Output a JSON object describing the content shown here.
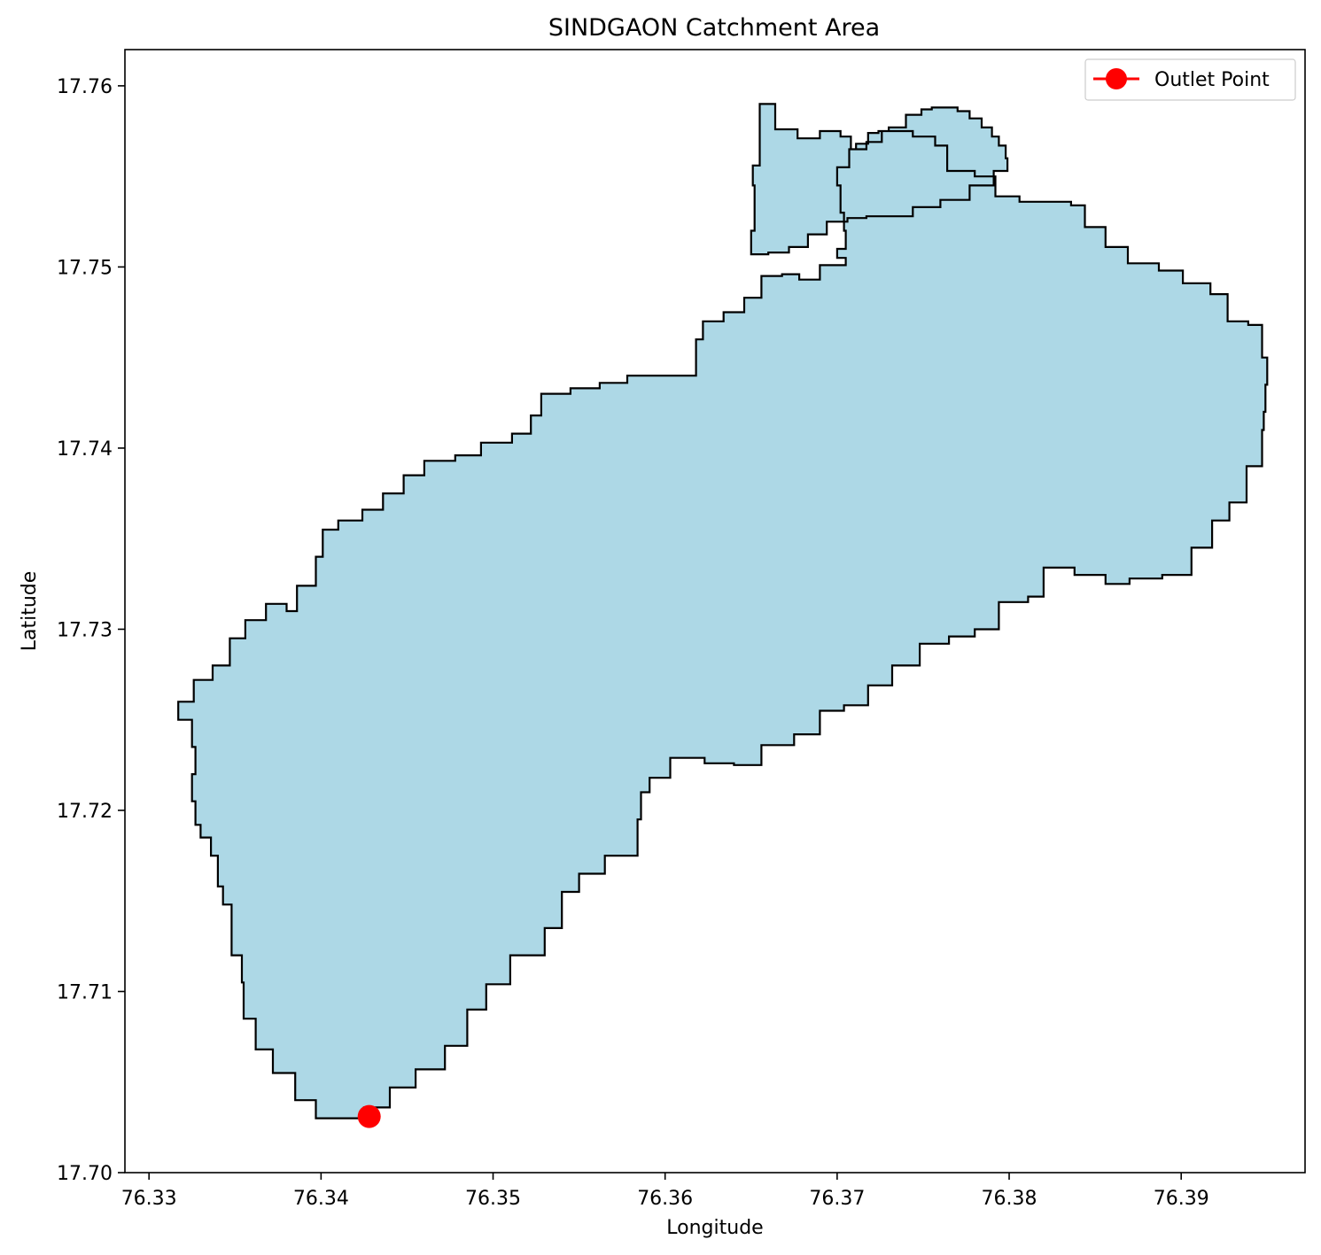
{
  "map": {
    "title": "SINDGAON Catchment Area",
    "xlabel": "Longitude",
    "ylabel": "Latitude",
    "xlim": [
      76.3286,
      76.3972
    ],
    "ylim": [
      17.7,
      17.762
    ],
    "x_ticks": [
      "76.33",
      "76.34",
      "76.35",
      "76.36",
      "76.37",
      "76.38",
      "76.39"
    ],
    "y_ticks": [
      "17.70",
      "17.71",
      "17.72",
      "17.73",
      "17.74",
      "17.75",
      "17.76"
    ],
    "grid": false,
    "legend": {
      "placement": "top-right",
      "entries": [
        {
          "label": "Outlet Point",
          "color": "#ff0000"
        }
      ]
    },
    "colors": {
      "catchment_fill": "#add8e6",
      "catchment_edge": "#000000",
      "outlet": "#ff0000"
    },
    "outlet": {
      "lon": 76.3428,
      "lat": 17.7031
    },
    "boundary": [
      [
        76.3655,
        17.759
      ],
      [
        76.3664,
        17.759
      ],
      [
        76.3664,
        17.7576
      ],
      [
        76.3677,
        17.7571
      ],
      [
        76.369,
        17.7575
      ],
      [
        76.3702,
        17.7572
      ],
      [
        76.3708,
        17.7565
      ],
      [
        76.3717,
        17.7569
      ],
      [
        76.3726,
        17.7575
      ],
      [
        76.3744,
        17.7572
      ],
      [
        76.3757,
        17.7567
      ],
      [
        76.3764,
        17.7553
      ],
      [
        76.378,
        17.755
      ],
      [
        76.3792,
        17.7539
      ],
      [
        76.3806,
        17.7536
      ],
      [
        76.3819,
        17.7536
      ],
      [
        76.3836,
        17.7534
      ],
      [
        76.3844,
        17.7522
      ],
      [
        76.3856,
        17.7511
      ],
      [
        76.3869,
        17.7502
      ],
      [
        76.3887,
        17.7498
      ],
      [
        76.3901,
        17.7491
      ],
      [
        76.3917,
        17.7485
      ],
      [
        76.3927,
        17.747
      ],
      [
        76.3939,
        17.7468
      ],
      [
        76.3947,
        17.745
      ],
      [
        76.395,
        17.7435
      ],
      [
        76.3949,
        17.742
      ],
      [
        76.3948,
        17.741
      ],
      [
        76.3947,
        17.739
      ],
      [
        76.3938,
        17.737
      ],
      [
        76.3928,
        17.736
      ],
      [
        76.3918,
        17.7345
      ],
      [
        76.3906,
        17.733
      ],
      [
        76.3889,
        17.7328
      ],
      [
        76.387,
        17.7325
      ],
      [
        76.3856,
        17.733
      ],
      [
        76.3838,
        17.7334
      ],
      [
        76.382,
        17.7318
      ],
      [
        76.3811,
        17.7315
      ],
      [
        76.3794,
        17.73
      ],
      [
        76.378,
        17.7296
      ],
      [
        76.3765,
        17.7292
      ],
      [
        76.3748,
        17.728
      ],
      [
        76.3732,
        17.7269
      ],
      [
        76.3718,
        17.7258
      ],
      [
        76.3704,
        17.7255
      ],
      [
        76.369,
        17.7242
      ],
      [
        76.3675,
        17.7236
      ],
      [
        76.3656,
        17.7225
      ],
      [
        76.364,
        17.7226
      ],
      [
        76.3623,
        17.7229
      ],
      [
        76.3603,
        17.7218
      ],
      [
        76.3591,
        17.721
      ],
      [
        76.3586,
        17.7195
      ],
      [
        76.3584,
        17.7175
      ],
      [
        76.3565,
        17.7165
      ],
      [
        76.355,
        17.7155
      ],
      [
        76.354,
        17.7135
      ],
      [
        76.353,
        17.712
      ],
      [
        76.351,
        17.7104
      ],
      [
        76.3496,
        17.709
      ],
      [
        76.3485,
        17.707
      ],
      [
        76.3472,
        17.7057
      ],
      [
        76.3455,
        17.7047
      ],
      [
        76.344,
        17.7036
      ],
      [
        76.3425,
        17.703
      ],
      [
        76.341,
        17.703
      ],
      [
        76.3397,
        17.704
      ],
      [
        76.3385,
        17.7055
      ],
      [
        76.3372,
        17.7068
      ],
      [
        76.3362,
        17.7085
      ],
      [
        76.3355,
        17.7105
      ],
      [
        76.3354,
        17.712
      ],
      [
        76.3348,
        17.7135
      ],
      [
        76.3348,
        17.7148
      ],
      [
        76.3343,
        17.7158
      ],
      [
        76.334,
        17.7175
      ],
      [
        76.3336,
        17.7185
      ],
      [
        76.333,
        17.7192
      ],
      [
        76.3327,
        17.7205
      ],
      [
        76.3325,
        17.722
      ],
      [
        76.3327,
        17.7235
      ],
      [
        76.3325,
        17.725
      ],
      [
        76.3317,
        17.726
      ],
      [
        76.3326,
        17.7272
      ],
      [
        76.3337,
        17.728
      ],
      [
        76.3347,
        17.7295
      ],
      [
        76.3356,
        17.7305
      ],
      [
        76.3368,
        17.7314
      ],
      [
        76.338,
        17.731
      ],
      [
        76.3386,
        17.7324
      ],
      [
        76.3397,
        17.734
      ],
      [
        76.3401,
        17.7355
      ],
      [
        76.341,
        17.736
      ],
      [
        76.3424,
        17.7366
      ],
      [
        76.3436,
        17.7375
      ],
      [
        76.3448,
        17.7385
      ],
      [
        76.346,
        17.7393
      ],
      [
        76.3478,
        17.7396
      ],
      [
        76.3493,
        17.7403
      ],
      [
        76.3511,
        17.7408
      ],
      [
        76.3522,
        17.7418
      ],
      [
        76.3528,
        17.743
      ],
      [
        76.3545,
        17.7433
      ],
      [
        76.3562,
        17.7436
      ],
      [
        76.3578,
        17.744
      ],
      [
        76.3595,
        17.744
      ],
      [
        76.3616,
        17.744
      ],
      [
        76.3618,
        17.746
      ],
      [
        76.3622,
        17.747
      ],
      [
        76.3634,
        17.7475
      ],
      [
        76.3646,
        17.7483
      ],
      [
        76.3656,
        17.7495
      ],
      [
        76.3668,
        17.7496
      ],
      [
        76.3678,
        17.7493
      ],
      [
        76.369,
        17.7501
      ],
      [
        76.3705,
        17.7505
      ],
      [
        76.37,
        17.751
      ],
      [
        76.3705,
        17.752
      ],
      [
        76.3704,
        17.753
      ],
      [
        76.3702,
        17.7545
      ],
      [
        76.37,
        17.7555
      ],
      [
        76.3707,
        17.7565
      ],
      [
        76.3711,
        17.7568
      ],
      [
        76.3718,
        17.7574
      ],
      [
        76.3724,
        17.7575
      ],
      [
        76.373,
        17.7577
      ],
      [
        76.374,
        17.7584
      ],
      [
        76.3749,
        17.7587
      ],
      [
        76.3755,
        17.7588
      ],
      [
        76.3763,
        17.7588
      ],
      [
        76.377,
        17.7586
      ],
      [
        76.3777,
        17.7582
      ],
      [
        76.3784,
        17.7577
      ],
      [
        76.379,
        17.7572
      ],
      [
        76.3794,
        17.7567
      ],
      [
        76.3798,
        17.756
      ],
      [
        76.3799,
        17.7553
      ],
      [
        76.3791,
        17.7545
      ],
      [
        76.3777,
        17.7537
      ],
      [
        76.376,
        17.7533
      ],
      [
        76.3744,
        17.7528
      ],
      [
        76.3731,
        17.7528
      ],
      [
        76.3717,
        17.7527
      ],
      [
        76.3706,
        17.7525
      ],
      [
        76.3694,
        17.7518
      ],
      [
        76.3683,
        17.7511
      ],
      [
        76.3672,
        17.7508
      ],
      [
        76.366,
        17.7507
      ],
      [
        76.365,
        17.7511
      ],
      [
        76.365,
        17.752
      ],
      [
        76.3652,
        17.7534
      ],
      [
        76.3652,
        17.7545
      ],
      [
        76.3651,
        17.7556
      ],
      [
        76.3655,
        17.7565
      ],
      [
        76.3655,
        17.758
      ]
    ]
  }
}
